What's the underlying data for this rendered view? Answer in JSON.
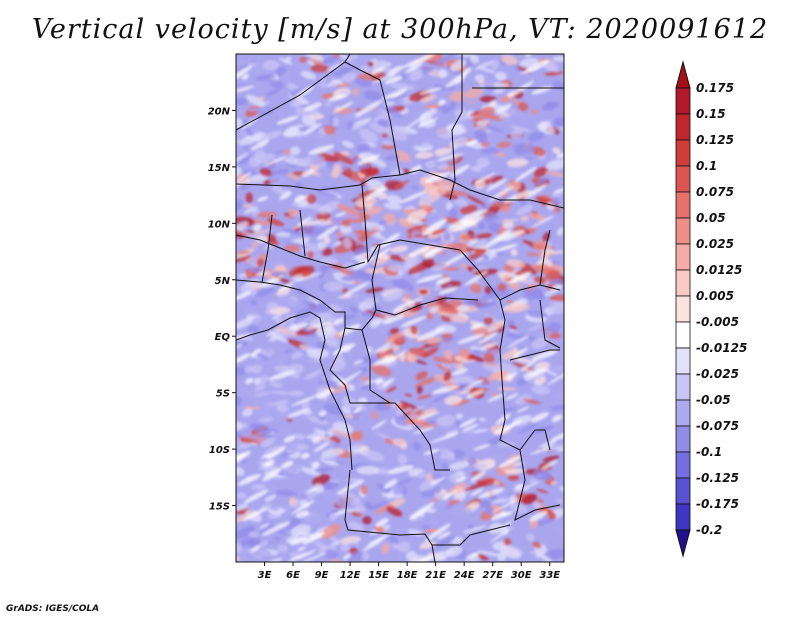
{
  "title": "Vertical velocity [m/s] at 300hPa, VT: 2020091612",
  "credit": "GrADS: IGES/COLA",
  "map": {
    "lat_range": [
      -20,
      25
    ],
    "lon_range": [
      0,
      34.5
    ],
    "y_ticks": [
      {
        "label": "20N",
        "lat": 20
      },
      {
        "label": "15N",
        "lat": 15
      },
      {
        "label": "10N",
        "lat": 10
      },
      {
        "label": "5N",
        "lat": 5
      },
      {
        "label": "EQ",
        "lat": 0
      },
      {
        "label": "5S",
        "lat": -5
      },
      {
        "label": "10S",
        "lat": -10
      },
      {
        "label": "15S",
        "lat": -15
      }
    ],
    "x_ticks": [
      {
        "label": "3E",
        "lon": 3
      },
      {
        "label": "6E",
        "lon": 6
      },
      {
        "label": "9E",
        "lon": 9
      },
      {
        "label": "12E",
        "lon": 12
      },
      {
        "label": "15E",
        "lon": 15
      },
      {
        "label": "18E",
        "lon": 18
      },
      {
        "label": "21E",
        "lon": 21
      },
      {
        "label": "24E",
        "lon": 24
      },
      {
        "label": "27E",
        "lon": 27
      },
      {
        "label": "30E",
        "lon": 30
      },
      {
        "label": "33E",
        "lon": 33
      }
    ]
  },
  "colorbar": {
    "levels": [
      {
        "label": "0.175",
        "color": "#b2182b"
      },
      {
        "label": "0.15",
        "color": "#c0272d"
      },
      {
        "label": "0.125",
        "color": "#cf3c3a"
      },
      {
        "label": "0.1",
        "color": "#dc5550"
      },
      {
        "label": "0.075",
        "color": "#e6716a"
      },
      {
        "label": "0.05",
        "color": "#ef8f88"
      },
      {
        "label": "0.025",
        "color": "#f5aca6"
      },
      {
        "label": "0.0125",
        "color": "#f9c9c4"
      },
      {
        "label": "0.005",
        "color": "#fce3e0"
      },
      {
        "label": "-0.005",
        "color": "#ffffff"
      },
      {
        "label": "-0.0125",
        "color": "#e2e1fb"
      },
      {
        "label": "-0.025",
        "color": "#c9c6f6"
      },
      {
        "label": "-0.05",
        "color": "#aeaaf0"
      },
      {
        "label": "-0.075",
        "color": "#918ce8"
      },
      {
        "label": "-0.1",
        "color": "#746ede"
      },
      {
        "label": "-0.125",
        "color": "#5851d2"
      },
      {
        "label": "-0.175",
        "color": "#3e36c2"
      },
      {
        "label": "-0.2",
        "color": "#2a20ac"
      }
    ],
    "top_color": "#a50f15",
    "bottom_color": "#1f118f"
  }
}
